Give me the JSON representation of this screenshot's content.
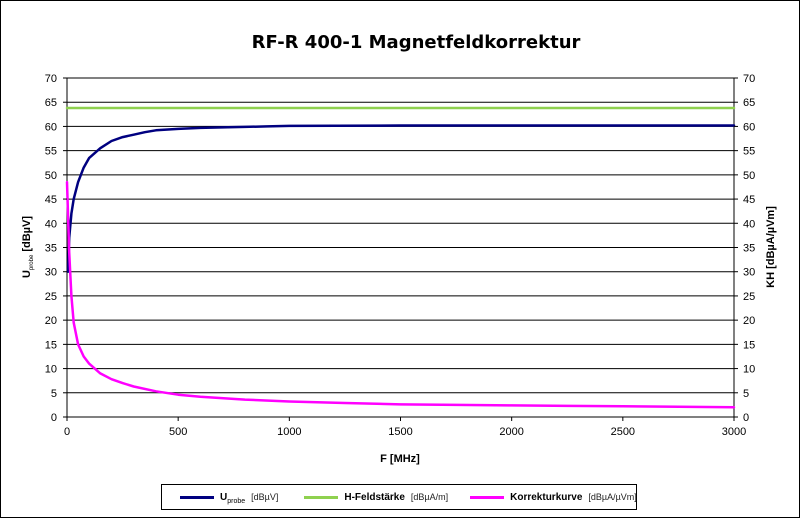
{
  "chart_data": {
    "type": "line",
    "title": "RF-R 400-1 Magnetfeldkorrektur",
    "xlabel": "F [MHz]",
    "ylabel_left": {
      "main": "U",
      "sub": "probe",
      "unit": " [dBµV]"
    },
    "ylabel_right": "KH [dBµA/µVm]",
    "xlim": [
      0,
      3000
    ],
    "ylim_left": [
      0,
      70
    ],
    "ylim_right": [
      0,
      70
    ],
    "x_ticks": [
      "0",
      "500",
      "1000",
      "1500",
      "2000",
      "2500",
      "3000"
    ],
    "y_ticks": [
      "0",
      "5",
      "10",
      "15",
      "20",
      "25",
      "30",
      "35",
      "40",
      "45",
      "50",
      "55",
      "60",
      "65",
      "70"
    ],
    "grid": true,
    "legend_position": "bottom",
    "series": [
      {
        "name": "U",
        "name_sub": "probe",
        "unit": "[dBµV]",
        "color": "#000080",
        "axis": "left",
        "x": [
          5,
          10,
          20,
          30,
          50,
          75,
          100,
          150,
          200,
          250,
          300,
          350,
          400,
          500,
          600,
          700,
          800,
          900,
          1000,
          1500,
          2000,
          2500,
          3000
        ],
        "y": [
          30,
          37,
          42,
          45,
          48.5,
          51.5,
          53.5,
          55.5,
          57,
          57.8,
          58.3,
          58.8,
          59.2,
          59.5,
          59.7,
          59.8,
          59.9,
          60,
          60.1,
          60.2,
          60.2,
          60.2,
          60.2
        ]
      },
      {
        "name": "H-Feldstärke",
        "unit": "[dBµA/m]",
        "color": "#8fd14f",
        "axis": "left",
        "x": [
          0,
          3000
        ],
        "y": [
          63.8,
          63.8
        ]
      },
      {
        "name": "Korrekturkurve",
        "unit": "[dBµA/µVm]",
        "color": "#ff00ff",
        "axis": "right",
        "x": [
          0,
          10,
          20,
          30,
          50,
          75,
          100,
          150,
          200,
          250,
          300,
          400,
          500,
          600,
          800,
          1000,
          1250,
          1500,
          1750,
          2000,
          2250,
          2500,
          2750,
          3000
        ],
        "y": [
          48.5,
          34,
          25,
          19.5,
          15,
          12.5,
          11,
          9,
          7.8,
          7,
          6.3,
          5.3,
          4.6,
          4.2,
          3.6,
          3.2,
          2.9,
          2.6,
          2.5,
          2.4,
          2.3,
          2.2,
          2.1,
          2.0
        ]
      }
    ]
  }
}
